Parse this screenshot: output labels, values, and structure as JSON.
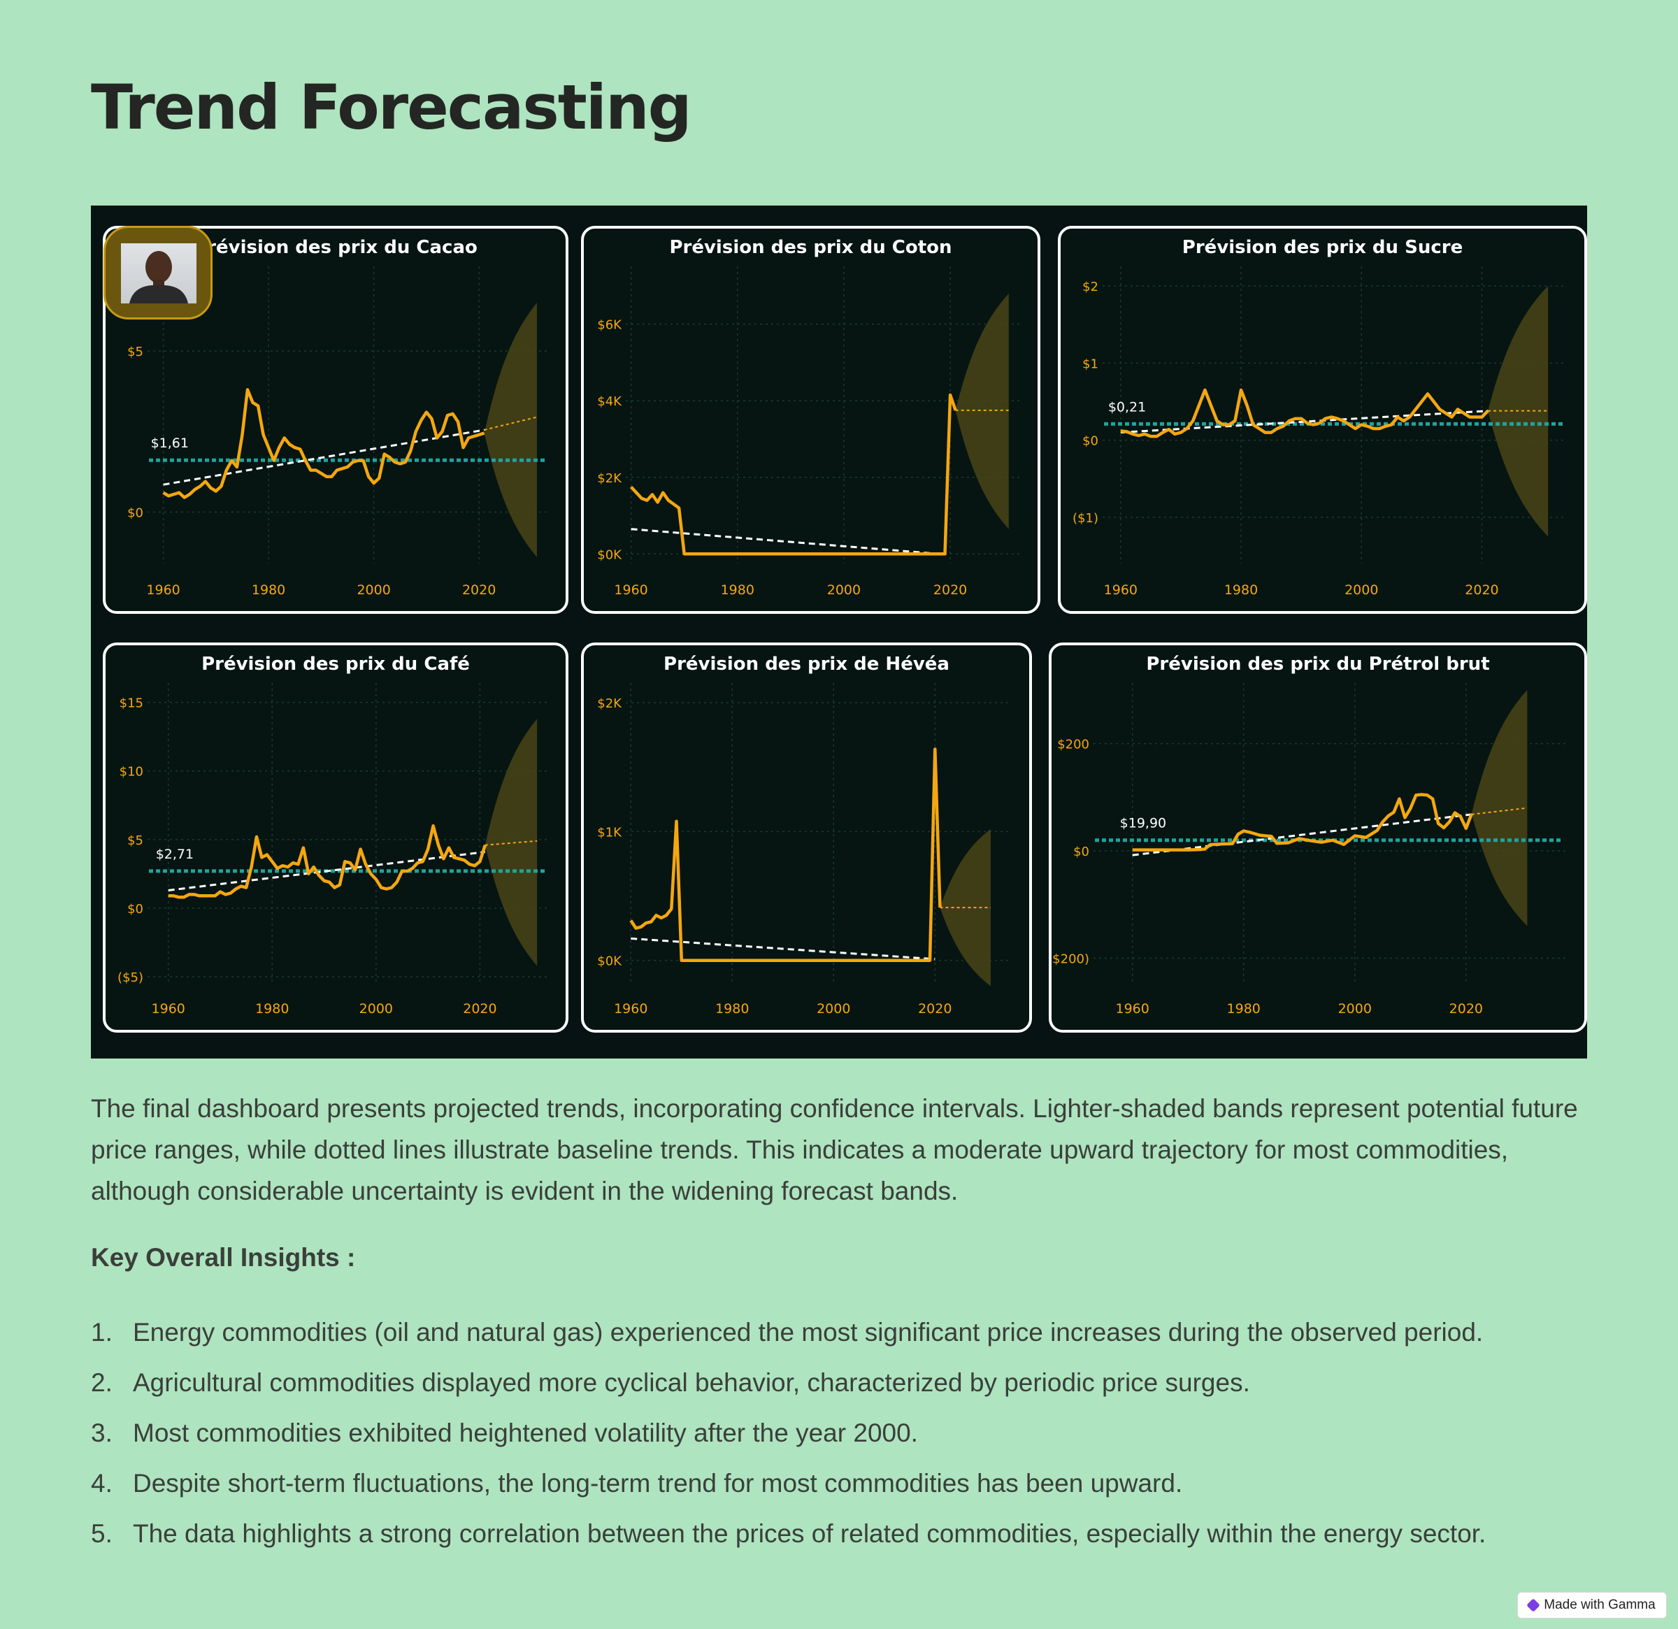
{
  "page": {
    "title": "Trend Forecasting",
    "description": "The final dashboard presents projected trends, incorporating confidence intervals. Lighter-shaded bands represent potential future price ranges, while dotted lines illustrate baseline trends. This indicates a moderate upward trajectory for most commodities, although considerable uncertainty is evident in the widening forecast bands.",
    "insights_heading": "Key Overall Insights :",
    "insights": [
      {
        "num": "1.",
        "text": "Energy commodities (oil and natural gas) experienced the most significant price increases during the observed period."
      },
      {
        "num": "2.",
        "text": "Agricultural commodities displayed more cyclical behavior, characterized by periodic price surges."
      },
      {
        "num": "3.",
        "text": "Most commodities exhibited heightened volatility after the year 2000."
      },
      {
        "num": "4.",
        "text": "Despite short-term fluctuations, the long-term trend for most commodities has been upward."
      },
      {
        "num": "5.",
        "text": "The data highlights a strong correlation between the prices of related commodities, especially within the energy sector."
      }
    ],
    "badge": "Made with Gamma"
  },
  "colors": {
    "background": "#aee4bf",
    "dashboard": "#071312",
    "series": "#f5a70f",
    "trend": "#ffffff",
    "average": "#1fa39f",
    "band": "#4a4417",
    "axis_text": "#f5a70f"
  },
  "chart_data": [
    {
      "type": "line",
      "title": "Prévision des prix du Cacao",
      "ylim": [
        -1.6,
        7.5
      ],
      "yticks": [
        0,
        5
      ],
      "ytick_labels": [
        "$0",
        "$5"
      ],
      "xlim": [
        1957,
        2033
      ],
      "xticks": [
        1960,
        1980,
        2000,
        2020
      ],
      "avg_label": "$1,61",
      "avg": 1.61,
      "trend": [
        [
          1960,
          0.85
        ],
        [
          2021,
          2.55
        ]
      ],
      "forecast": [
        [
          2021,
          2.55
        ],
        [
          2031,
          2.95
        ]
      ],
      "band": {
        "x0": 2021,
        "x1": 2031,
        "upper_end": 6.5,
        "lower_end": -1.4
      },
      "x": [
        1960,
        1961,
        1962,
        1963,
        1964,
        1965,
        1966,
        1967,
        1968,
        1969,
        1970,
        1971,
        1972,
        1973,
        1974,
        1975,
        1976,
        1977,
        1978,
        1979,
        1980,
        1981,
        1982,
        1983,
        1984,
        1985,
        1986,
        1987,
        1988,
        1989,
        1990,
        1991,
        1992,
        1993,
        1994,
        1995,
        1996,
        1997,
        1998,
        1999,
        2000,
        2001,
        2002,
        2003,
        2004,
        2005,
        2006,
        2007,
        2008,
        2009,
        2010,
        2011,
        2012,
        2013,
        2014,
        2015,
        2016,
        2017,
        2018,
        2019,
        2020,
        2021
      ],
      "values": [
        0.6,
        0.5,
        0.55,
        0.6,
        0.45,
        0.55,
        0.7,
        0.8,
        0.95,
        0.75,
        0.65,
        0.8,
        1.3,
        1.6,
        1.4,
        2.4,
        3.8,
        3.4,
        3.3,
        2.4,
        2.0,
        1.6,
        2.0,
        2.3,
        2.1,
        2.0,
        1.95,
        1.6,
        1.3,
        1.3,
        1.2,
        1.1,
        1.1,
        1.3,
        1.35,
        1.4,
        1.55,
        1.6,
        1.6,
        1.1,
        0.9,
        1.05,
        1.8,
        1.7,
        1.55,
        1.5,
        1.55,
        1.9,
        2.5,
        2.85,
        3.1,
        2.9,
        2.3,
        2.5,
        3.0,
        3.05,
        2.8,
        2.0,
        2.3,
        2.35,
        2.4,
        2.45
      ]
    },
    {
      "type": "line",
      "title": "Prévision des prix du Coton",
      "ylim": [
        -250,
        7400
      ],
      "yticks": [
        0,
        2000,
        4000,
        6000
      ],
      "ytick_labels": [
        "$0K",
        "$2K",
        "$4K",
        "$6K"
      ],
      "xlim": [
        1959,
        2033
      ],
      "xticks": [
        1960,
        1980,
        2000,
        2020
      ],
      "trend": [
        [
          1960,
          650
        ],
        [
          2018,
          0
        ]
      ],
      "forecast": [
        [
          2021,
          3750
        ],
        [
          2031,
          3750
        ]
      ],
      "band": {
        "x0": 2021,
        "x1": 2031,
        "upper_end": 6800,
        "lower_end": 650
      },
      "x": [
        1960,
        1961,
        1962,
        1963,
        1964,
        1965,
        1966,
        1967,
        1968,
        1969,
        1970,
        1975,
        1980,
        1985,
        1990,
        1995,
        2000,
        2005,
        2010,
        2015,
        2019,
        2020,
        2021
      ],
      "values": [
        1750,
        1600,
        1450,
        1400,
        1550,
        1350,
        1600,
        1400,
        1300,
        1200,
        0,
        0,
        0,
        0,
        0,
        0,
        0,
        0,
        0,
        0,
        0,
        4150,
        3750
      ]
    },
    {
      "type": "line",
      "title": "Prévision des prix du Sucre",
      "ylim": [
        -1.6,
        2.2
      ],
      "yticks": [
        -1,
        0,
        1,
        2
      ],
      "ytick_labels": [
        "($1)",
        "$0",
        "$1",
        "$2"
      ],
      "xlim": [
        1957,
        2034
      ],
      "xticks": [
        1960,
        1980,
        2000,
        2020
      ],
      "avg_label": "$0,21",
      "avg": 0.21,
      "trend": [
        [
          1960,
          0.1
        ],
        [
          2021,
          0.38
        ]
      ],
      "forecast": [
        [
          2021,
          0.38
        ],
        [
          2031,
          0.38
        ]
      ],
      "band": {
        "x0": 2021,
        "x1": 2031,
        "upper_end": 2.0,
        "lower_end": -1.25
      },
      "x": [
        1960,
        1961,
        1962,
        1963,
        1964,
        1965,
        1966,
        1967,
        1968,
        1969,
        1970,
        1971,
        1972,
        1973,
        1974,
        1975,
        1976,
        1977,
        1978,
        1979,
        1980,
        1981,
        1982,
        1983,
        1984,
        1985,
        1986,
        1987,
        1988,
        1989,
        1990,
        1991,
        1992,
        1993,
        1994,
        1995,
        1996,
        1997,
        1998,
        1999,
        2000,
        2001,
        2002,
        2003,
        2004,
        2005,
        2006,
        2007,
        2008,
        2009,
        2010,
        2011,
        2012,
        2013,
        2014,
        2015,
        2016,
        2017,
        2018,
        2019,
        2020,
        2021
      ],
      "values": [
        0.12,
        0.11,
        0.08,
        0.06,
        0.08,
        0.05,
        0.05,
        0.1,
        0.14,
        0.08,
        0.1,
        0.15,
        0.25,
        0.45,
        0.65,
        0.45,
        0.25,
        0.2,
        0.2,
        0.25,
        0.65,
        0.45,
        0.2,
        0.15,
        0.1,
        0.1,
        0.15,
        0.18,
        0.25,
        0.28,
        0.28,
        0.22,
        0.2,
        0.22,
        0.28,
        0.3,
        0.28,
        0.25,
        0.2,
        0.15,
        0.2,
        0.18,
        0.15,
        0.15,
        0.18,
        0.2,
        0.3,
        0.25,
        0.3,
        0.4,
        0.5,
        0.6,
        0.5,
        0.4,
        0.35,
        0.3,
        0.4,
        0.35,
        0.3,
        0.3,
        0.3,
        0.38
      ]
    },
    {
      "type": "line",
      "title": "Prévision des prix du Café",
      "ylim": [
        -5.4,
        16.1
      ],
      "yticks": [
        -5,
        0,
        5,
        10,
        15
      ],
      "ytick_labels": [
        "($5)",
        "$0",
        "$5",
        "$10",
        "$15"
      ],
      "xlim": [
        1956,
        2033
      ],
      "xticks": [
        1960,
        1980,
        2000,
        2020
      ],
      "avg_label": "$2,71",
      "avg": 2.71,
      "trend": [
        [
          1960,
          1.3
        ],
        [
          2021,
          4.1
        ]
      ],
      "forecast": [
        [
          2021,
          4.6
        ],
        [
          2031,
          4.9
        ]
      ],
      "band": {
        "x0": 2021,
        "x1": 2031,
        "upper_end": 13.8,
        "lower_end": -4.2
      },
      "x": [
        1960,
        1961,
        1962,
        1963,
        1964,
        1965,
        1966,
        1967,
        1968,
        1969,
        1970,
        1971,
        1972,
        1973,
        1974,
        1975,
        1976,
        1977,
        1978,
        1979,
        1980,
        1981,
        1982,
        1983,
        1984,
        1985,
        1986,
        1987,
        1988,
        1989,
        1990,
        1991,
        1992,
        1993,
        1994,
        1995,
        1996,
        1997,
        1998,
        1999,
        2000,
        2001,
        2002,
        2003,
        2004,
        2005,
        2006,
        2007,
        2008,
        2009,
        2010,
        2011,
        2012,
        2013,
        2014,
        2015,
        2016,
        2017,
        2018,
        2019,
        2020,
        2021
      ],
      "values": [
        0.9,
        0.9,
        0.8,
        0.8,
        1.0,
        1.0,
        0.9,
        0.9,
        0.9,
        0.9,
        1.2,
        1.0,
        1.1,
        1.4,
        1.6,
        1.5,
        3.0,
        5.2,
        3.7,
        3.9,
        3.4,
        2.9,
        3.1,
        3.0,
        3.3,
        3.2,
        4.4,
        2.5,
        3.0,
        2.4,
        2.0,
        1.9,
        1.5,
        1.7,
        3.4,
        3.3,
        2.8,
        4.3,
        3.2,
        2.5,
        2.1,
        1.5,
        1.4,
        1.5,
        1.9,
        2.7,
        2.7,
        2.9,
        3.3,
        3.4,
        4.3,
        6.0,
        4.6,
        3.6,
        4.4,
        3.7,
        3.6,
        3.5,
        3.2,
        3.1,
        3.4,
        4.6
      ]
    },
    {
      "type": "line",
      "title": "Prévision des prix de Hévéa",
      "ylim": [
        -170,
        2120
      ],
      "yticks": [
        0,
        1000,
        2000
      ],
      "ytick_labels": [
        "$0K",
        "$1K",
        "$2K"
      ],
      "xlim": [
        1959,
        2035
      ],
      "xticks": [
        1960,
        1980,
        2000,
        2020
      ],
      "trend": [
        [
          1960,
          170
        ],
        [
          2020,
          10
        ]
      ],
      "forecast": [
        [
          2021,
          410
        ],
        [
          2031,
          410
        ]
      ],
      "band": {
        "x0": 2021,
        "x1": 2031,
        "upper_end": 1020,
        "lower_end": -200
      },
      "x": [
        1960,
        1961,
        1962,
        1963,
        1964,
        1965,
        1966,
        1967,
        1968,
        1969,
        1970,
        1975,
        1980,
        1990,
        2000,
        2010,
        2019,
        2020,
        2021
      ],
      "values": [
        310,
        250,
        260,
        290,
        300,
        350,
        330,
        350,
        400,
        1080,
        0,
        0,
        0,
        0,
        0,
        0,
        0,
        1640,
        410
      ]
    },
    {
      "type": "line",
      "title": "Prévision des prix du Prétrol brut",
      "ylim": [
        -245,
        305
      ],
      "yticks": [
        -200,
        0,
        200
      ],
      "ytick_labels": [
        "($200)",
        "$0",
        "$200"
      ],
      "xlim": [
        1953,
        2038
      ],
      "xticks": [
        1960,
        1980,
        2000,
        2020
      ],
      "avg_label": "$19,90",
      "avg": 19.9,
      "trend": [
        [
          1960,
          -8
        ],
        [
          2021,
          68
        ]
      ],
      "forecast": [
        [
          2021,
          68
        ],
        [
          2031,
          80
        ]
      ],
      "band": {
        "x0": 2021,
        "x1": 2031,
        "upper_end": 300,
        "lower_end": -140
      },
      "x": [
        1960,
        1962,
        1964,
        1966,
        1968,
        1970,
        1972,
        1973,
        1974,
        1976,
        1978,
        1979,
        1980,
        1981,
        1982,
        1983,
        1984,
        1985,
        1986,
        1988,
        1990,
        1992,
        1994,
        1996,
        1998,
        2000,
        2002,
        2004,
        2005,
        2006,
        2007,
        2008,
        2009,
        2010,
        2011,
        2012,
        2013,
        2014,
        2015,
        2016,
        2017,
        2018,
        2019,
        2020,
        2021
      ],
      "values": [
        1.9,
        1.9,
        1.9,
        1.9,
        1.9,
        1.8,
        2.5,
        3.3,
        11.6,
        12.8,
        13.4,
        31,
        37,
        35,
        32,
        29,
        28,
        27,
        14,
        15,
        23,
        19,
        16,
        20,
        12,
        28,
        25,
        38,
        54,
        65,
        72,
        97,
        62,
        79,
        104,
        105,
        104,
        97,
        51,
        43,
        54,
        71,
        64,
        42,
        69
      ]
    }
  ]
}
